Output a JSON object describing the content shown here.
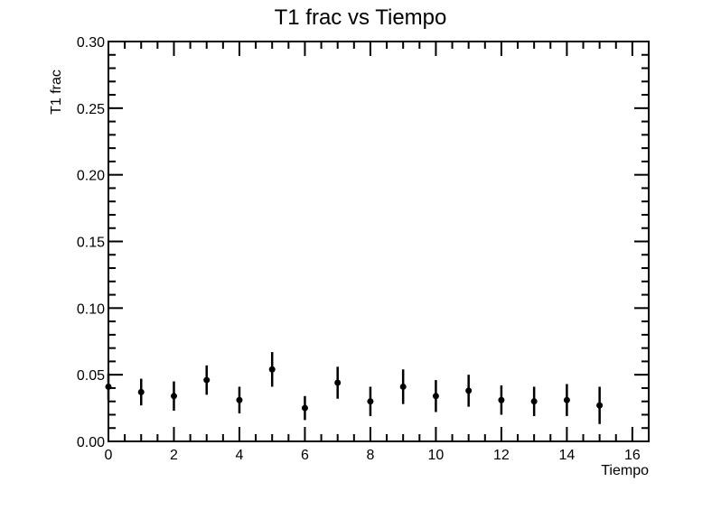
{
  "chart_data": {
    "type": "scatter",
    "title": "T1 frac vs Tiempo",
    "xlabel": "Tiempo",
    "ylabel": "T1 frac",
    "xlim": [
      0,
      16.5
    ],
    "ylim": [
      0,
      0.3
    ],
    "x_ticks": [
      0,
      2,
      4,
      6,
      8,
      10,
      12,
      14,
      16
    ],
    "y_ticks": [
      "0.00",
      "0.05",
      "0.10",
      "0.15",
      "0.20",
      "0.25",
      "0.30"
    ],
    "grid": false,
    "series": [
      {
        "x": [
          0,
          1,
          2,
          3,
          4,
          5,
          6,
          7,
          8,
          9,
          10,
          11,
          12,
          13,
          14,
          15
        ],
        "y": [
          0.041,
          0.037,
          0.034,
          0.046,
          0.031,
          0.054,
          0.025,
          0.044,
          0.03,
          0.041,
          0.034,
          0.038,
          0.031,
          0.03,
          0.031,
          0.027
        ],
        "err": [
          0.01,
          0.01,
          0.011,
          0.011,
          0.01,
          0.013,
          0.009,
          0.012,
          0.011,
          0.013,
          0.012,
          0.012,
          0.011,
          0.011,
          0.012,
          0.014
        ]
      }
    ]
  }
}
